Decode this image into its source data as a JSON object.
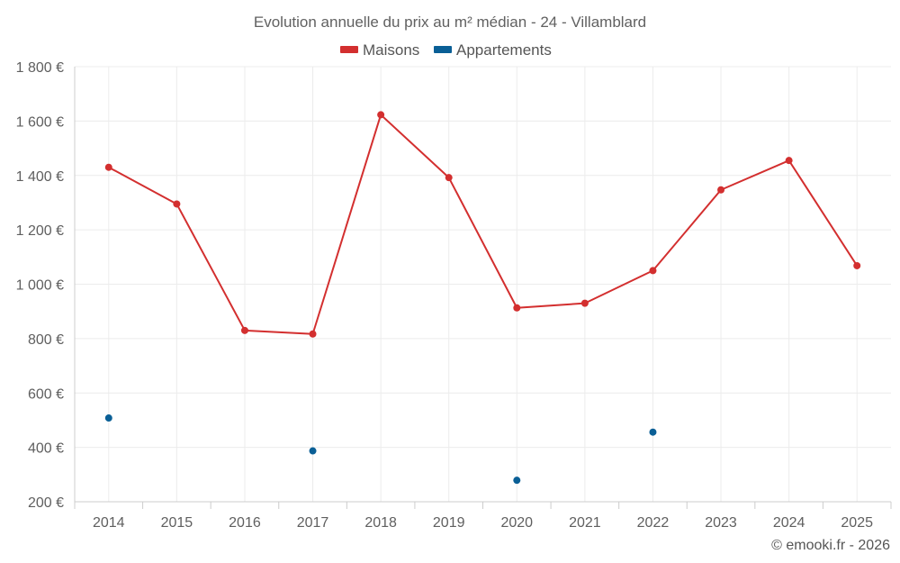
{
  "chart_data": {
    "type": "line",
    "title": "Evolution annuelle du prix au m² médian - 24 - Villamblard",
    "categories": [
      "2014",
      "2015",
      "2016",
      "2017",
      "2018",
      "2019",
      "2020",
      "2021",
      "2022",
      "2023",
      "2024",
      "2025"
    ],
    "series": [
      {
        "name": "Maisons",
        "color": "#d32f2f",
        "values": [
          1430,
          1295,
          830,
          817,
          1623,
          1392,
          913,
          930,
          1050,
          1347,
          1455,
          1068
        ]
      },
      {
        "name": "Appartements",
        "color": "#0a5f96",
        "values": [
          508,
          null,
          null,
          387,
          null,
          null,
          279,
          null,
          456,
          null,
          null,
          null
        ]
      }
    ],
    "yticks": [
      "200 €",
      "400 €",
      "600 €",
      "800 €",
      "1 000 €",
      "1 200 €",
      "1 400 €",
      "1 600 €",
      "1 800 €"
    ],
    "ylim": [
      200,
      1800
    ],
    "grid": true,
    "legend_position": "top-center",
    "credit": "© emooki.fr - 2026"
  }
}
